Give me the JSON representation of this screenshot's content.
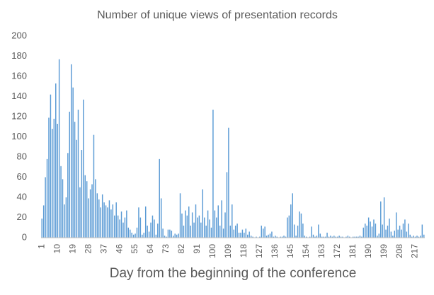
{
  "chart_data": {
    "type": "bar",
    "title": "Number of unique views of presentation records",
    "x_label": "Day from the beginning of the conference",
    "color": "#5b9bd5",
    "ylim": [
      0,
      200
    ],
    "yticks": [
      0,
      20,
      40,
      60,
      80,
      100,
      120,
      140,
      160,
      180,
      200
    ],
    "grid": false,
    "categories": [
      "1",
      null,
      null,
      null,
      null,
      null,
      null,
      null,
      null,
      "10",
      null,
      null,
      null,
      null,
      null,
      null,
      null,
      null,
      "19",
      null,
      null,
      null,
      null,
      null,
      null,
      null,
      null,
      "28",
      null,
      null,
      null,
      null,
      null,
      null,
      null,
      null,
      "37",
      null,
      null,
      null,
      null,
      null,
      null,
      null,
      null,
      "46",
      null,
      null,
      null,
      null,
      null,
      null,
      null,
      null,
      "55",
      null,
      null,
      null,
      null,
      null,
      null,
      null,
      null,
      "64",
      null,
      null,
      null,
      null,
      null,
      null,
      null,
      null,
      "73",
      null,
      null,
      null,
      null,
      null,
      null,
      null,
      null,
      "82",
      null,
      null,
      null,
      null,
      null,
      null,
      null,
      null,
      "91",
      null,
      null,
      null,
      null,
      null,
      null,
      null,
      null,
      "100",
      null,
      null,
      null,
      null,
      null,
      null,
      null,
      null,
      "109",
      null,
      null,
      null,
      null,
      null,
      null,
      null,
      null,
      "118",
      null,
      null,
      null,
      null,
      null,
      null,
      null,
      null,
      "127",
      null,
      null,
      null,
      null,
      null,
      null,
      null,
      null,
      "136",
      null,
      null,
      null,
      null,
      null,
      null,
      null,
      null,
      "145",
      null,
      null,
      null,
      null,
      null,
      null,
      null,
      null,
      "154",
      null,
      null,
      null,
      null,
      null,
      null,
      null,
      null,
      "163",
      null,
      null,
      null,
      null,
      null,
      null,
      null,
      null,
      "172",
      null,
      null,
      null,
      null,
      null,
      null,
      null,
      null,
      "181",
      null,
      null,
      null,
      null,
      null,
      null,
      null,
      null,
      "190",
      null,
      null,
      null,
      null,
      null,
      null,
      null,
      null,
      "199",
      null,
      null,
      null,
      null,
      null,
      null,
      null,
      null,
      "208",
      null,
      null,
      null,
      null,
      null,
      null,
      null,
      null,
      "217",
      null,
      null,
      null,
      null,
      null
    ],
    "values": [
      19,
      32,
      60,
      78,
      119,
      142,
      108,
      118,
      153,
      113,
      177,
      71,
      58,
      33,
      40,
      84,
      125,
      172,
      149,
      115,
      97,
      127,
      50,
      87,
      137,
      62,
      56,
      39,
      48,
      53,
      102,
      58,
      44,
      38,
      30,
      43,
      35,
      32,
      30,
      37,
      28,
      33,
      22,
      35,
      22,
      18,
      26,
      15,
      20,
      27,
      10,
      8,
      5,
      3,
      4,
      10,
      30,
      20,
      3,
      5,
      31,
      12,
      6,
      15,
      22,
      18,
      3,
      14,
      78,
      39,
      9,
      2,
      1,
      8,
      8,
      7,
      2,
      4,
      3,
      4,
      44,
      24,
      12,
      27,
      22,
      31,
      12,
      25,
      15,
      33,
      20,
      22,
      15,
      48,
      20,
      12,
      27,
      18,
      10,
      127,
      27,
      20,
      32,
      12,
      37,
      9,
      25,
      65,
      109,
      12,
      33,
      8,
      12,
      14,
      5,
      5,
      8,
      5,
      9,
      3,
      6,
      2,
      1,
      0,
      1,
      0,
      1,
      12,
      9,
      11,
      2,
      3,
      4,
      6,
      1,
      2,
      1,
      0,
      1,
      1,
      2,
      1,
      20,
      22,
      33,
      44,
      13,
      2,
      12,
      26,
      24,
      14,
      2,
      1,
      0,
      1,
      11,
      3,
      1,
      2,
      13,
      4,
      1,
      1,
      1,
      5,
      1,
      2,
      1,
      2,
      1,
      1,
      2,
      1,
      1,
      0,
      1,
      2,
      1,
      0,
      1,
      1,
      1,
      1,
      2,
      1,
      10,
      14,
      12,
      20,
      16,
      11,
      18,
      14,
      2,
      4,
      36,
      13,
      40,
      8,
      12,
      19,
      6,
      2,
      7,
      25,
      8,
      12,
      8,
      14,
      18,
      6,
      14,
      3,
      1,
      2,
      1,
      2,
      1,
      2,
      13,
      3
    ]
  }
}
